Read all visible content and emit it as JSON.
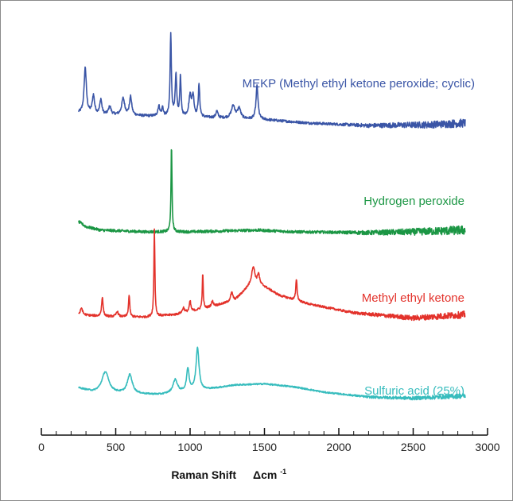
{
  "chart_data": {
    "type": "line",
    "title": "",
    "xlabel": "Raman Shift",
    "xlabel_unit": "Δcm",
    "xlabel_unit_sup": "-1",
    "ylabel": "",
    "xlim": [
      0,
      3000
    ],
    "x_ticks": [
      "0",
      "500",
      "1000",
      "1500",
      "2000",
      "2500",
      "3000"
    ],
    "grid": false,
    "legend": "inline labels",
    "series": [
      {
        "name": "MEKP (Methyl ethyl ketone peroxide; cyclic)",
        "color": "#3a55a6",
        "offset": 160,
        "noise": 1.5,
        "baseline": [
          [
            250,
            12
          ],
          [
            400,
            10
          ],
          [
            600,
            9
          ],
          [
            800,
            8
          ],
          [
            1000,
            7
          ],
          [
            1200,
            6
          ],
          [
            1500,
            4
          ],
          [
            1800,
            0
          ],
          [
            2200,
            -3
          ],
          [
            2600,
            -2
          ],
          [
            2850,
            0
          ]
        ],
        "peaks": [
          [
            295,
            55,
            9
          ],
          [
            350,
            22,
            9
          ],
          [
            400,
            18,
            8
          ],
          [
            460,
            10,
            10
          ],
          [
            550,
            20,
            12
          ],
          [
            600,
            22,
            9
          ],
          [
            790,
            12,
            8
          ],
          [
            815,
            10,
            6
          ],
          [
            870,
            100,
            5
          ],
          [
            905,
            50,
            6
          ],
          [
            935,
            48,
            5
          ],
          [
            1000,
            25,
            10
          ],
          [
            1020,
            24,
            8
          ],
          [
            1060,
            38,
            6
          ],
          [
            1180,
            8,
            8
          ],
          [
            1290,
            15,
            15
          ],
          [
            1330,
            12,
            12
          ],
          [
            1450,
            40,
            8
          ]
        ]
      },
      {
        "name": "Hydrogen peroxide",
        "color": "#1b9644",
        "offset": 85,
        "noise": 1.6,
        "baseline": [
          [
            250,
            12
          ],
          [
            300,
            6
          ],
          [
            400,
            2
          ],
          [
            700,
            0
          ],
          [
            1000,
            0
          ],
          [
            1450,
            2
          ],
          [
            1700,
            0
          ],
          [
            2200,
            -1
          ],
          [
            2500,
            0
          ],
          [
            2850,
            2
          ]
        ],
        "peaks": [
          [
            875,
            100,
            4
          ]
        ]
      },
      {
        "name": "Methyl ethyl ketone",
        "color": "#e3322b",
        "offset": 22,
        "noise": 1.2,
        "baseline": [
          [
            250,
            8
          ],
          [
            400,
            6
          ],
          [
            700,
            5
          ],
          [
            900,
            8
          ],
          [
            1100,
            15
          ],
          [
            1300,
            24
          ],
          [
            1420,
            45
          ],
          [
            1500,
            40
          ],
          [
            1600,
            30
          ],
          [
            1800,
            20
          ],
          [
            2100,
            10
          ],
          [
            2500,
            4
          ],
          [
            2850,
            8
          ]
        ],
        "peaks": [
          [
            270,
            8,
            8
          ],
          [
            410,
            22,
            6
          ],
          [
            510,
            6,
            8
          ],
          [
            590,
            25,
            5
          ],
          [
            760,
            100,
            4
          ],
          [
            955,
            6,
            8
          ],
          [
            1000,
            12,
            6
          ],
          [
            1085,
            40,
            4
          ],
          [
            1150,
            6,
            8
          ],
          [
            1280,
            10,
            10
          ],
          [
            1425,
            18,
            12
          ],
          [
            1460,
            12,
            8
          ],
          [
            1715,
            25,
            5
          ]
        ]
      },
      {
        "name": "Sulfuric acid (25%)",
        "color": "#36bcbd",
        "offset": -45,
        "noise": 1.2,
        "baseline": [
          [
            250,
            15
          ],
          [
            350,
            8
          ],
          [
            600,
            5
          ],
          [
            800,
            4
          ],
          [
            1100,
            12
          ],
          [
            1300,
            20
          ],
          [
            1500,
            22
          ],
          [
            1700,
            17
          ],
          [
            1900,
            8
          ],
          [
            2200,
            0
          ],
          [
            2500,
            -2
          ],
          [
            2850,
            2
          ]
        ],
        "peaks": [
          [
            430,
            35,
            28
          ],
          [
            595,
            32,
            20
          ],
          [
            900,
            22,
            18
          ],
          [
            985,
            38,
            10
          ],
          [
            1050,
            72,
            12
          ]
        ]
      }
    ]
  }
}
